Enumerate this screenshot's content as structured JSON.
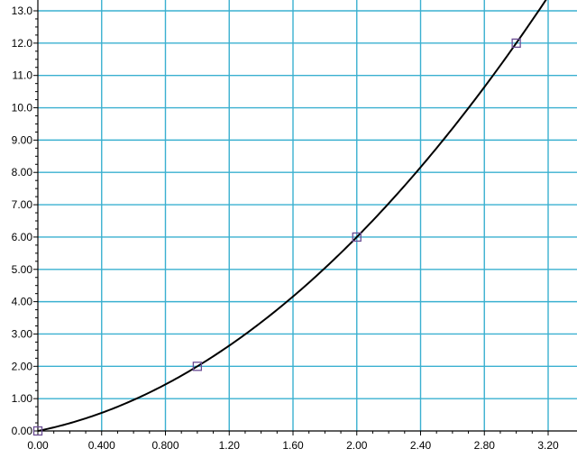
{
  "chart_data": {
    "type": "line",
    "title": "",
    "xlabel": "",
    "ylabel": "",
    "xlim": [
      0,
      3.2
    ],
    "ylim": [
      0,
      13
    ],
    "grid": true,
    "x_ticks": [
      {
        "value": 0,
        "label": "0.00"
      },
      {
        "value": 0.4,
        "label": "0.400"
      },
      {
        "value": 0.8,
        "label": "0.800"
      },
      {
        "value": 1.2,
        "label": "1.20"
      },
      {
        "value": 1.6,
        "label": "1.60"
      },
      {
        "value": 2.0,
        "label": "2.00"
      },
      {
        "value": 2.4,
        "label": "2.40"
      },
      {
        "value": 2.8,
        "label": "2.80"
      },
      {
        "value": 3.2,
        "label": "3.20"
      }
    ],
    "y_ticks": [
      {
        "value": 0,
        "label": "0.00"
      },
      {
        "value": 1,
        "label": "1.00"
      },
      {
        "value": 2,
        "label": "2.00"
      },
      {
        "value": 3,
        "label": "3.00"
      },
      {
        "value": 4,
        "label": "4.00"
      },
      {
        "value": 5,
        "label": "5.00"
      },
      {
        "value": 6,
        "label": "6.00"
      },
      {
        "value": 7,
        "label": "7.00"
      },
      {
        "value": 8,
        "label": "8.00"
      },
      {
        "value": 9,
        "label": "9.00"
      },
      {
        "value": 10,
        "label": "10.0"
      },
      {
        "value": 11,
        "label": "11.0"
      },
      {
        "value": 12,
        "label": "12.0"
      },
      {
        "value": 13,
        "label": "13.0"
      }
    ],
    "series": [
      {
        "points": [
          {
            "x": 0,
            "y": 0
          },
          {
            "x": 1,
            "y": 2
          },
          {
            "x": 2,
            "y": 6
          },
          {
            "x": 3,
            "y": 12
          }
        ],
        "curve": {
          "x_start": 0,
          "x_end": 3.2
        }
      }
    ],
    "colors": {
      "grid": "#3ab0d0",
      "curve": "#000000",
      "marker": "#6a4c93"
    }
  }
}
